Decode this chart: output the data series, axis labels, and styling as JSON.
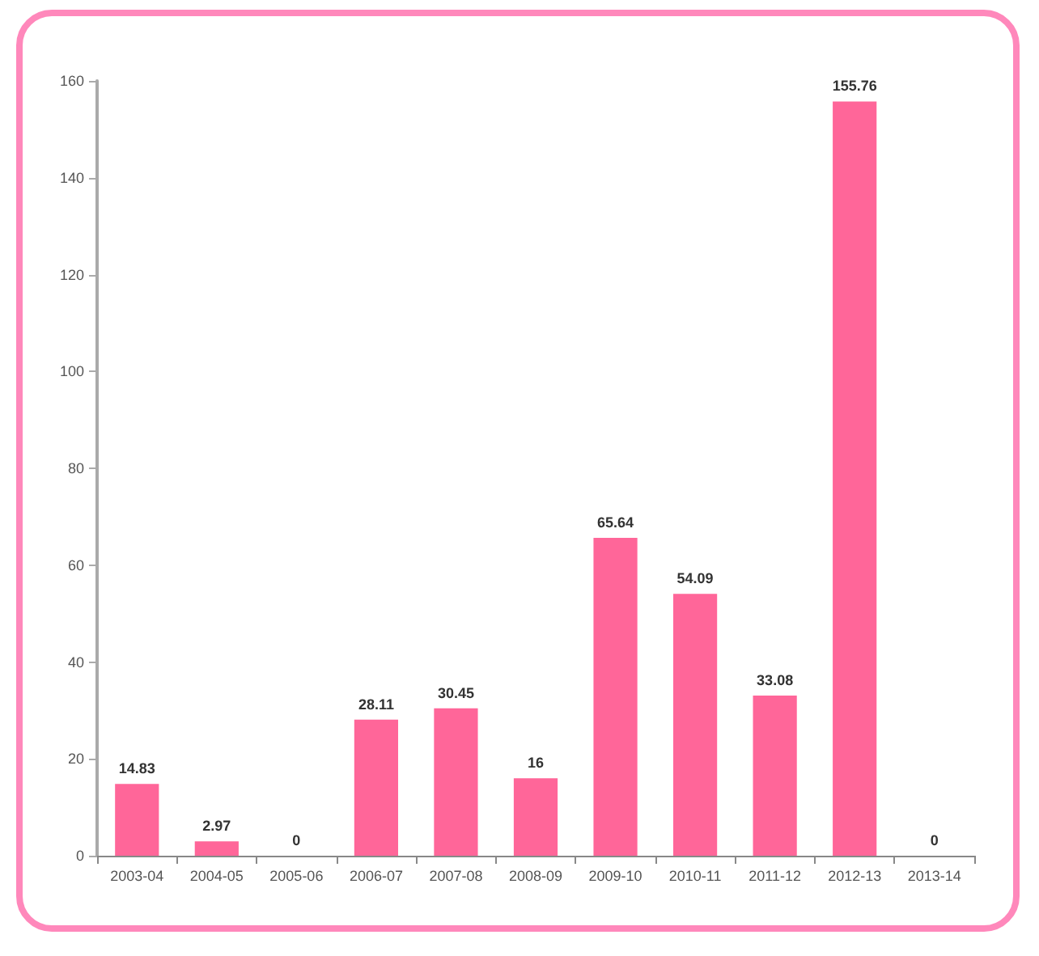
{
  "chart_data": {
    "type": "bar",
    "categories": [
      "2003-04",
      "2004-05",
      "2005-06",
      "2006-07",
      "2007-08",
      "2008-09",
      "2009-10",
      "2010-11",
      "2011-12",
      "2012-13",
      "2013-14"
    ],
    "values": [
      14.83,
      2.97,
      0,
      28.11,
      30.45,
      16,
      65.64,
      54.09,
      33.08,
      155.76,
      0
    ],
    "value_labels": [
      "14.83",
      "2.97",
      "0",
      "28.11",
      "30.45",
      "16",
      "65.64",
      "54.09",
      "33.08",
      "155.76",
      "0"
    ],
    "color": "#ff6699",
    "ylim": [
      0,
      160
    ],
    "yticks": [
      0,
      20,
      40,
      60,
      80,
      100,
      120,
      140,
      160
    ],
    "grid": false
  }
}
